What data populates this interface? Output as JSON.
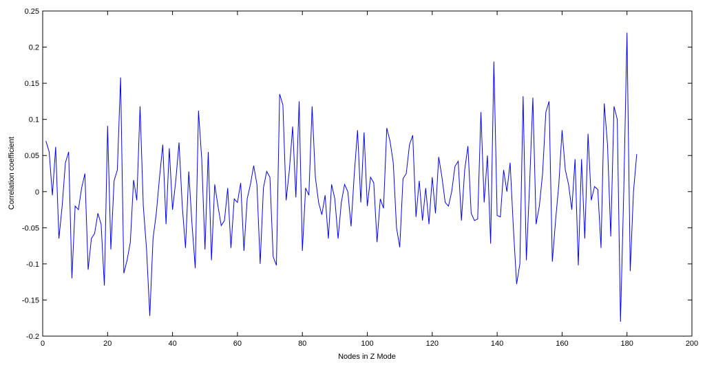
{
  "chart_data": {
    "type": "line",
    "xlabel": "Nodes in Z Mode",
    "ylabel": "Correlation coefficient",
    "x": [
      1,
      2,
      3,
      4,
      5,
      6,
      7,
      8,
      9,
      10,
      11,
      12,
      13,
      14,
      15,
      16,
      17,
      18,
      19,
      20,
      21,
      22,
      23,
      24,
      25,
      26,
      27,
      28,
      29,
      30,
      31,
      32,
      33,
      34,
      35,
      36,
      37,
      38,
      39,
      40,
      41,
      42,
      43,
      44,
      45,
      46,
      47,
      48,
      49,
      50,
      51,
      52,
      53,
      54,
      55,
      56,
      57,
      58,
      59,
      60,
      61,
      62,
      63,
      64,
      65,
      66,
      67,
      68,
      69,
      70,
      71,
      72,
      73,
      74,
      75,
      76,
      77,
      78,
      79,
      80,
      81,
      82,
      83,
      84,
      85,
      86,
      87,
      88,
      89,
      90,
      91,
      92,
      93,
      94,
      95,
      96,
      97,
      98,
      99,
      100,
      101,
      102,
      103,
      104,
      105,
      106,
      107,
      108,
      109,
      110,
      111,
      112,
      113,
      114,
      115,
      116,
      117,
      118,
      119,
      120,
      121,
      122,
      123,
      124,
      125,
      126,
      127,
      128,
      129,
      130,
      131,
      132,
      133,
      134,
      135,
      136,
      137,
      138,
      139,
      140,
      141,
      142,
      143,
      144,
      145,
      146,
      147,
      148,
      149,
      150,
      151,
      152,
      153,
      154,
      155,
      156,
      157,
      158,
      159,
      160,
      161,
      162,
      163,
      164,
      165,
      166,
      167,
      168,
      169,
      170,
      171,
      172,
      173,
      174,
      175,
      176,
      177,
      178,
      179,
      180,
      181,
      182,
      183
    ],
    "series": [
      {
        "color": "#0000ff",
        "values": [
          0.07,
          0.055,
          -0.005,
          0.062,
          -0.065,
          -0.02,
          0.04,
          0.055,
          -0.12,
          -0.02,
          -0.025,
          0.005,
          0.025,
          -0.108,
          -0.065,
          -0.058,
          -0.03,
          -0.045,
          -0.13,
          0.091,
          -0.08,
          0.015,
          0.03,
          0.158,
          -0.113,
          -0.095,
          -0.07,
          0.016,
          -0.012,
          0.118,
          -0.02,
          -0.08,
          -0.172,
          -0.065,
          -0.03,
          0.02,
          0.065,
          -0.045,
          0.06,
          -0.025,
          0.015,
          0.068,
          -0.02,
          -0.078,
          0.028,
          -0.045,
          -0.106,
          0.112,
          0.045,
          -0.08,
          0.055,
          -0.095,
          0.01,
          -0.02,
          -0.047,
          -0.04,
          0.005,
          -0.078,
          -0.01,
          -0.015,
          0.012,
          -0.082,
          -0.01,
          0.01,
          0.036,
          0.01,
          -0.1,
          0.005,
          0.028,
          0.02,
          -0.09,
          -0.102,
          0.135,
          0.12,
          -0.012,
          0.03,
          0.09,
          -0.008,
          0.125,
          -0.082,
          0.005,
          -0.005,
          0.118,
          0.02,
          -0.015,
          -0.032,
          -0.005,
          -0.065,
          0.01,
          -0.01,
          -0.065,
          -0.015,
          0.01,
          0.0,
          -0.048,
          0.025,
          0.085,
          -0.015,
          0.082,
          -0.02,
          0.02,
          0.012,
          -0.07,
          -0.01,
          -0.023,
          0.088,
          0.07,
          0.04,
          -0.05,
          -0.077,
          0.018,
          0.025,
          0.065,
          0.078,
          -0.035,
          0.015,
          -0.04,
          0.005,
          -0.045,
          0.02,
          -0.03,
          0.048,
          0.02,
          -0.015,
          -0.02,
          0.0,
          0.035,
          0.042,
          -0.04,
          0.03,
          0.063,
          -0.03,
          -0.04,
          -0.038,
          0.11,
          -0.015,
          0.05,
          -0.072,
          0.18,
          -0.033,
          -0.035,
          0.03,
          0.0,
          0.04,
          -0.05,
          -0.128,
          -0.1,
          0.132,
          -0.095,
          0.01,
          0.13,
          -0.045,
          -0.02,
          0.025,
          0.11,
          0.125,
          -0.097,
          -0.04,
          0.01,
          0.085,
          0.03,
          0.01,
          -0.025,
          0.045,
          -0.102,
          0.045,
          -0.065,
          0.08,
          -0.012,
          0.007,
          0.003,
          -0.078,
          0.122,
          0.065,
          -0.062,
          0.118,
          0.1,
          -0.18,
          0.0,
          0.22,
          -0.11,
          0.0,
          0.052
        ]
      }
    ],
    "xlim": [
      0,
      200
    ],
    "xticks": [
      0,
      20,
      40,
      60,
      80,
      100,
      120,
      140,
      160,
      180,
      200
    ],
    "ylim": [
      -0.2,
      0.25
    ],
    "yticks": [
      -0.2,
      -0.15,
      -0.1,
      -0.05,
      0,
      0.05,
      0.1,
      0.15,
      0.2,
      0.25
    ]
  }
}
